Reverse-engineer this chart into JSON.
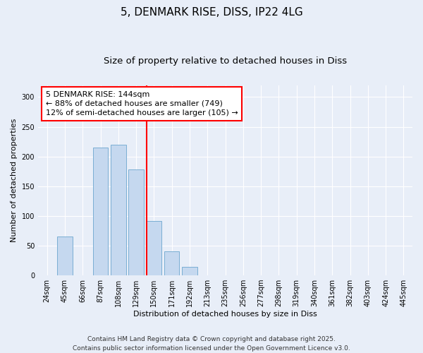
{
  "title_line1": "5, DENMARK RISE, DISS, IP22 4LG",
  "title_line2": "Size of property relative to detached houses in Diss",
  "xlabel": "Distribution of detached houses by size in Diss",
  "ylabel": "Number of detached properties",
  "categories": [
    "24sqm",
    "45sqm",
    "66sqm",
    "87sqm",
    "108sqm",
    "129sqm",
    "150sqm",
    "171sqm",
    "192sqm",
    "213sqm",
    "235sqm",
    "256sqm",
    "277sqm",
    "298sqm",
    "319sqm",
    "340sqm",
    "361sqm",
    "382sqm",
    "403sqm",
    "424sqm",
    "445sqm"
  ],
  "values": [
    0,
    65,
    0,
    215,
    220,
    178,
    92,
    40,
    14,
    0,
    0,
    0,
    0,
    0,
    0,
    0,
    0,
    0,
    0,
    0,
    0
  ],
  "bar_color": "#c5d8ef",
  "bar_edge_color": "#7aaed4",
  "vline_color": "red",
  "vline_index": 6,
  "annotation_text": "5 DENMARK RISE: 144sqm\n← 88% of detached houses are smaller (749)\n12% of semi-detached houses are larger (105) →",
  "annotation_box_color": "white",
  "annotation_box_edge_color": "red",
  "ylim": [
    0,
    320
  ],
  "yticks": [
    0,
    50,
    100,
    150,
    200,
    250,
    300
  ],
  "background_color": "#e8eef8",
  "plot_bg_color": "#e8eef8",
  "footer_line1": "Contains HM Land Registry data © Crown copyright and database right 2025.",
  "footer_line2": "Contains public sector information licensed under the Open Government Licence v3.0.",
  "title_fontsize": 11,
  "subtitle_fontsize": 9.5,
  "axis_label_fontsize": 8,
  "tick_fontsize": 7,
  "annotation_fontsize": 8,
  "footer_fontsize": 6.5
}
